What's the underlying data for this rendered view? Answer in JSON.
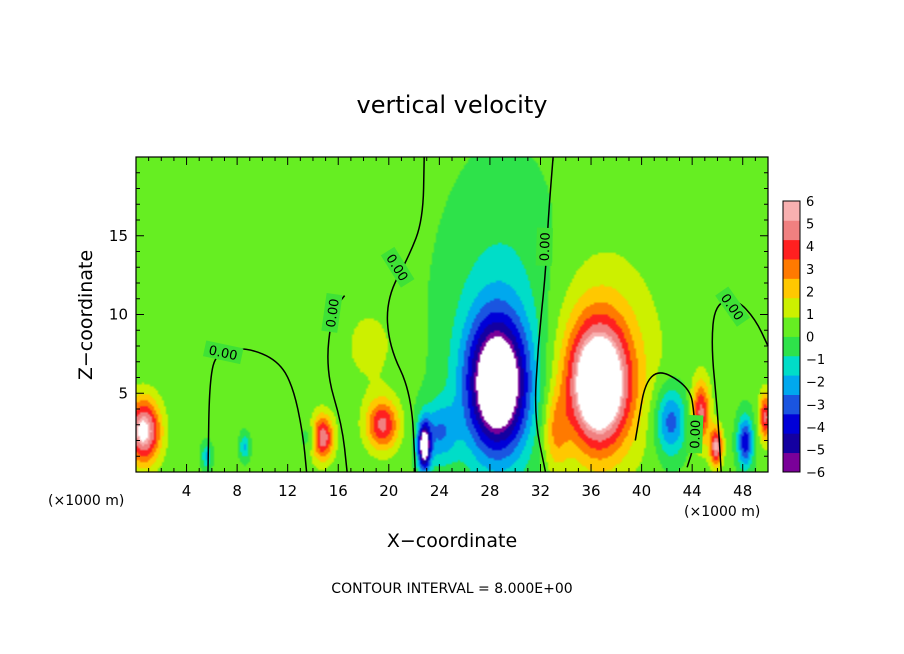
{
  "chart_data": {
    "type": "heatmap",
    "title": "vertical velocity",
    "xlabel": "X−coordinate",
    "ylabel": "Z−coordinate",
    "x_unit_left": "(×1000 m)",
    "x_unit_right": "(×1000 m)",
    "footer": "CONTOUR INTERVAL = 8.000E+00",
    "xlim": [
      0,
      50
    ],
    "ylim": [
      0,
      20
    ],
    "x_ticks": [
      4,
      8,
      12,
      16,
      20,
      24,
      28,
      32,
      36,
      40,
      44,
      48
    ],
    "x_tick_labels": [
      "4",
      "8",
      "12",
      "16",
      "20",
      "24",
      "28",
      "32",
      "36",
      "40",
      "44",
      "48"
    ],
    "y_ticks": [
      5,
      10,
      15
    ],
    "y_tick_labels": [
      "5",
      "10",
      "15"
    ],
    "colorbar": {
      "levels": [
        -6,
        -5,
        -4,
        -3,
        -2,
        -1,
        0,
        1,
        2,
        3,
        4,
        5,
        6
      ],
      "labels": [
        "6",
        "5",
        "4",
        "3",
        "2",
        "1",
        "0",
        "−1",
        "−2",
        "−3",
        "−4",
        "−5",
        "−6"
      ],
      "colors": [
        "#7a0099",
        "#1400a0",
        "#0000d8",
        "#1a55e0",
        "#00a8ee",
        "#00ddc8",
        "#2ee24a",
        "#66ee22",
        "#ccf000",
        "#ffc800",
        "#ff7a00",
        "#ff2020",
        "#f08080",
        "#f8b0b0"
      ]
    },
    "background_value": 0.3,
    "features": [
      {
        "x": 28.6,
        "z": 5.5,
        "sx": 2.4,
        "sz": 4.2,
        "value": -9
      },
      {
        "x": 36.6,
        "z": 5.5,
        "sx": 2.3,
        "sz": 3.8,
        "value": 8.5
      },
      {
        "x": 0.6,
        "z": 2.6,
        "sx": 1.3,
        "sz": 2.0,
        "value": 7
      },
      {
        "x": 14.7,
        "z": 2.2,
        "sx": 0.9,
        "sz": 1.4,
        "value": 6
      },
      {
        "x": 19.5,
        "z": 3.0,
        "sx": 1.3,
        "sz": 1.6,
        "value": 5
      },
      {
        "x": 22.8,
        "z": 1.6,
        "sx": 0.5,
        "sz": 1.5,
        "value": -8
      },
      {
        "x": 42.3,
        "z": 3.2,
        "sx": 1.2,
        "sz": 2.2,
        "value": -4
      },
      {
        "x": 44.7,
        "z": 3.8,
        "sx": 0.7,
        "sz": 2.0,
        "value": 5
      },
      {
        "x": 45.9,
        "z": 1.6,
        "sx": 0.5,
        "sz": 1.2,
        "value": 6
      },
      {
        "x": 48.2,
        "z": 1.9,
        "sx": 0.6,
        "sz": 1.6,
        "value": -5
      },
      {
        "x": 49.8,
        "z": 3.5,
        "sx": 0.5,
        "sz": 1.5,
        "value": 5
      },
      {
        "x": 8.6,
        "z": 1.6,
        "sx": 0.4,
        "sz": 0.8,
        "value": -2.5
      },
      {
        "x": 13.9,
        "z": 2.2,
        "sx": 0.7,
        "sz": 1.0,
        "value": -2
      },
      {
        "x": 5.6,
        "z": 1.0,
        "sx": 0.4,
        "sz": 0.8,
        "value": -2.5
      },
      {
        "x": 29.0,
        "z": 9.0,
        "sx": 4.5,
        "sz": 9.0,
        "value": -1.8
      },
      {
        "x": 36.8,
        "z": 7.0,
        "sx": 4.5,
        "sz": 6.5,
        "value": 2.2
      },
      {
        "x": 18.5,
        "z": 8.0,
        "sx": 2.5,
        "sz": 3.0,
        "value": 1.0
      },
      {
        "x": 33.2,
        "z": 2.5,
        "sx": 1.0,
        "sz": 2.5,
        "value": 2.5
      },
      {
        "x": 24.0,
        "z": 2.5,
        "sx": 1.4,
        "sz": 2.0,
        "value": -3
      }
    ],
    "contours": [
      {
        "label": "0.00",
        "label_at": [
          6.9,
          7.6
        ],
        "label_rotate": 12,
        "points": [
          [
            5.7,
            0
          ],
          [
            5.8,
            5.8
          ],
          [
            6.4,
            7.7
          ],
          [
            8.8,
            7.9
          ],
          [
            11.2,
            7.1
          ],
          [
            12.4,
            5.5
          ],
          [
            13.2,
            2.5
          ],
          [
            13.5,
            0
          ]
        ]
      },
      {
        "label": "0.00",
        "label_at": [
          15.5,
          10.1
        ],
        "label_rotate": -82,
        "points": [
          [
            16.7,
            0
          ],
          [
            16.3,
            3
          ],
          [
            15.0,
            6.5
          ],
          [
            15.5,
            10.2
          ],
          [
            16.5,
            11.2
          ]
        ]
      },
      {
        "label": "0.00",
        "label_at": [
          20.7,
          13.0
        ],
        "label_rotate": 58,
        "points": [
          [
            22.1,
            0
          ],
          [
            21.8,
            5
          ],
          [
            20.0,
            8
          ],
          [
            19.8,
            11.0
          ],
          [
            21.6,
            13.7
          ],
          [
            22.7,
            16.0
          ],
          [
            22.8,
            20
          ]
        ]
      },
      {
        "label": "0.00",
        "label_at": [
          32.3,
          14.3
        ],
        "label_rotate": -88,
        "points": [
          [
            32.4,
            0
          ],
          [
            31.5,
            3.5
          ],
          [
            31.8,
            8.0
          ],
          [
            32.4,
            12.5
          ],
          [
            32.6,
            16.0
          ],
          [
            33.0,
            20
          ]
        ]
      },
      {
        "label": "0.00",
        "label_at": [
          44.2,
          2.4
        ],
        "label_rotate": -88,
        "points": [
          [
            43.6,
            0.3
          ],
          [
            44.2,
            1.8
          ],
          [
            44.2,
            3.5
          ],
          [
            43.8,
            5.5
          ],
          [
            40.5,
            6.8
          ],
          [
            39.5,
            2.0
          ]
        ]
      },
      {
        "label": "0.00",
        "label_at": [
          47.2,
          10.5
        ],
        "label_rotate": 55,
        "points": [
          [
            46.3,
            0
          ],
          [
            46.0,
            4.0
          ],
          [
            45.5,
            8.0
          ],
          [
            45.8,
            10.7
          ],
          [
            47.5,
            11.0
          ],
          [
            49.0,
            9.7
          ],
          [
            50.0,
            8.0
          ]
        ]
      }
    ]
  }
}
